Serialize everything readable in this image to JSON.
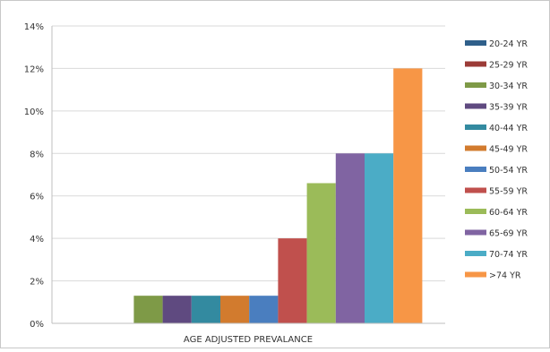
{
  "chart_data": {
    "type": "bar",
    "title": "",
    "xlabel": "",
    "ylabel": "",
    "categories": [
      "AGE ADJUSTED PREVALANCE"
    ],
    "ylim": [
      0,
      14
    ],
    "y_ticks": [
      0,
      2,
      4,
      6,
      8,
      10,
      12,
      14
    ],
    "y_tick_format": "%",
    "grid": true,
    "legend_position": "right",
    "series": [
      {
        "name": "20-24 YR",
        "values": [
          0
        ],
        "color": "#2f5f8a"
      },
      {
        "name": "25-29 YR",
        "values": [
          0
        ],
        "color": "#9b3b37"
      },
      {
        "name": "30-34 YR",
        "values": [
          1.3
        ],
        "color": "#7e9a47"
      },
      {
        "name": "35-39 YR",
        "values": [
          1.3
        ],
        "color": "#5f4a80"
      },
      {
        "name": "40-44 YR",
        "values": [
          1.3
        ],
        "color": "#338aa0"
      },
      {
        "name": "45-49 YR",
        "values": [
          1.3
        ],
        "color": "#d27b2e"
      },
      {
        "name": "50-54 YR",
        "values": [
          1.3
        ],
        "color": "#4a7ebf"
      },
      {
        "name": "55-59 YR",
        "values": [
          4
        ],
        "color": "#c0504d"
      },
      {
        "name": "60-64 YR",
        "values": [
          6.6
        ],
        "color": "#9bbb59"
      },
      {
        "name": "65-69 YR",
        "values": [
          8
        ],
        "color": "#8064a2"
      },
      {
        "name": "70-74 YR",
        "values": [
          8
        ],
        "color": "#4bacc6"
      },
      {
        "name": ">74 YR",
        "values": [
          12
        ],
        "color": "#f79646"
      }
    ]
  }
}
